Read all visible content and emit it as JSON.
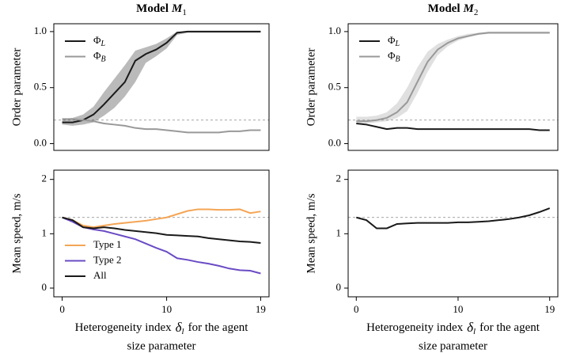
{
  "chart_data": [
    {
      "type": "line",
      "title": "Model",
      "title_italic": "M",
      "title_sub": "1",
      "ylabel": "Order parameter",
      "x": [
        0,
        1,
        2,
        3,
        4,
        5,
        6,
        7,
        8,
        9,
        10,
        11,
        12,
        13,
        14,
        15,
        16,
        17,
        18,
        19
      ],
      "xlim": [
        -0.8,
        19.8
      ],
      "ylim": [
        -0.06,
        1.07
      ],
      "yticks": [
        {
          "value": 0,
          "label": "0.0"
        },
        0.5,
        {
          "value": 1,
          "label": "1.0"
        }
      ],
      "hline": 0.21,
      "legend": "topleft",
      "series": [
        {
          "name": "Φ",
          "name_sub": "L",
          "color": "#1a1a1a",
          "values": [
            0.19,
            0.19,
            0.21,
            0.26,
            0.35,
            0.45,
            0.55,
            0.74,
            0.8,
            0.84,
            0.9,
            0.99,
            1.0,
            1.0,
            1.0,
            1.0,
            1.0,
            1.0,
            1.0,
            1.0
          ],
          "lower": [
            0.17,
            0.16,
            0.17,
            0.19,
            0.25,
            0.32,
            0.42,
            0.55,
            0.72,
            0.78,
            0.85,
            0.97,
            0.99,
            0.99,
            0.99,
            0.99,
            0.99,
            0.99,
            0.99,
            0.99
          ],
          "upper": [
            0.22,
            0.23,
            0.26,
            0.33,
            0.46,
            0.58,
            0.7,
            0.83,
            0.86,
            0.89,
            0.94,
            1.0,
            1.0,
            1.0,
            1.0,
            1.0,
            1.0,
            1.0,
            1.0,
            1.0
          ]
        },
        {
          "name": "Φ",
          "name_sub": "B",
          "color": "#999999",
          "values": [
            0.22,
            0.22,
            0.21,
            0.2,
            0.18,
            0.17,
            0.16,
            0.14,
            0.13,
            0.13,
            0.12,
            0.11,
            0.1,
            0.1,
            0.1,
            0.1,
            0.11,
            0.11,
            0.12,
            0.12
          ]
        }
      ]
    },
    {
      "type": "line",
      "title": "Model",
      "title_italic": "M",
      "title_sub": "2",
      "ylabel": "Order parameter",
      "x": [
        0,
        1,
        2,
        3,
        4,
        5,
        6,
        7,
        8,
        9,
        10,
        11,
        12,
        13,
        14,
        15,
        16,
        17,
        18,
        19
      ],
      "xlim": [
        -0.8,
        19.8
      ],
      "ylim": [
        -0.06,
        1.07
      ],
      "yticks": [
        {
          "value": 0,
          "label": "0.0"
        },
        0.5,
        {
          "value": 1,
          "label": "1.0"
        }
      ],
      "hline": 0.21,
      "legend": "topleft",
      "series": [
        {
          "name": "Φ",
          "name_sub": "L",
          "color": "#1a1a1a",
          "values": [
            0.18,
            0.17,
            0.15,
            0.13,
            0.14,
            0.14,
            0.13,
            0.13,
            0.13,
            0.13,
            0.13,
            0.13,
            0.13,
            0.13,
            0.13,
            0.13,
            0.13,
            0.13,
            0.12,
            0.12
          ]
        },
        {
          "name": "Φ",
          "name_sub": "B",
          "color": "#999999",
          "values": [
            0.2,
            0.2,
            0.21,
            0.23,
            0.28,
            0.37,
            0.55,
            0.73,
            0.84,
            0.9,
            0.94,
            0.96,
            0.98,
            0.99,
            0.99,
            0.99,
            0.99,
            0.99,
            0.99,
            0.99
          ],
          "lower": [
            0.17,
            0.18,
            0.19,
            0.2,
            0.23,
            0.29,
            0.45,
            0.64,
            0.79,
            0.87,
            0.92,
            0.95,
            0.97,
            0.98,
            0.98,
            0.98,
            0.98,
            0.98,
            0.98,
            0.98
          ],
          "upper": [
            0.24,
            0.24,
            0.25,
            0.28,
            0.36,
            0.5,
            0.68,
            0.82,
            0.89,
            0.93,
            0.96,
            0.98,
            0.99,
            1.0,
            1.0,
            1.0,
            1.0,
            1.0,
            1.0,
            1.0
          ]
        }
      ]
    },
    {
      "type": "line",
      "ylabel": "Mean speed, m/s",
      "xlabel": {
        "before": "Heterogeneity index",
        "symbol": "δ",
        "sub": "l",
        "after": "for the agent",
        "line2": "size parameter"
      },
      "x": [
        0,
        1,
        2,
        3,
        4,
        5,
        6,
        7,
        8,
        9,
        10,
        11,
        12,
        13,
        14,
        15,
        16,
        17,
        18,
        19
      ],
      "xlim": [
        -0.8,
        19.8
      ],
      "ylim": [
        -0.16,
        2.17
      ],
      "xticks": [
        0,
        10,
        19
      ],
      "yticks": [
        0,
        1,
        2
      ],
      "hline": 1.3,
      "legend": "bottomleft",
      "series": [
        {
          "name": "Type 1",
          "color": "#f4a555",
          "values": [
            1.3,
            1.25,
            1.15,
            1.12,
            1.15,
            1.18,
            1.2,
            1.22,
            1.24,
            1.27,
            1.3,
            1.36,
            1.42,
            1.45,
            1.45,
            1.44,
            1.44,
            1.45,
            1.38,
            1.41
          ]
        },
        {
          "name": "Type 2",
          "color": "#6a4bc4",
          "values": [
            1.3,
            1.22,
            1.12,
            1.08,
            1.05,
            1.0,
            0.95,
            0.9,
            0.82,
            0.74,
            0.67,
            0.55,
            0.52,
            0.48,
            0.45,
            0.41,
            0.36,
            0.33,
            0.32,
            0.27
          ]
        },
        {
          "name": "All",
          "color": "#1a1a1a",
          "values": [
            1.3,
            1.25,
            1.12,
            1.1,
            1.12,
            1.1,
            1.07,
            1.05,
            1.03,
            1.01,
            0.98,
            0.97,
            0.96,
            0.95,
            0.92,
            0.9,
            0.88,
            0.86,
            0.85,
            0.83
          ]
        }
      ]
    },
    {
      "type": "line",
      "ylabel": "Mean speed, m/s",
      "xlabel": {
        "before": "Heterogeneity index",
        "symbol": "δ",
        "sub": "l",
        "after": "for the agent",
        "line2": "size parameter"
      },
      "x": [
        0,
        1,
        2,
        3,
        4,
        5,
        6,
        7,
        8,
        9,
        10,
        11,
        12,
        13,
        14,
        15,
        16,
        17,
        18,
        19
      ],
      "xlim": [
        -0.8,
        19.8
      ],
      "ylim": [
        -0.16,
        2.17
      ],
      "xticks": [
        0,
        10,
        19
      ],
      "yticks": [
        0,
        1,
        2
      ],
      "hline": 1.3,
      "series": [
        {
          "color": "#1a1a1a",
          "values": [
            1.3,
            1.25,
            1.1,
            1.1,
            1.18,
            1.19,
            1.2,
            1.2,
            1.2,
            1.2,
            1.21,
            1.21,
            1.22,
            1.23,
            1.25,
            1.27,
            1.3,
            1.34,
            1.4,
            1.47
          ]
        }
      ]
    }
  ]
}
